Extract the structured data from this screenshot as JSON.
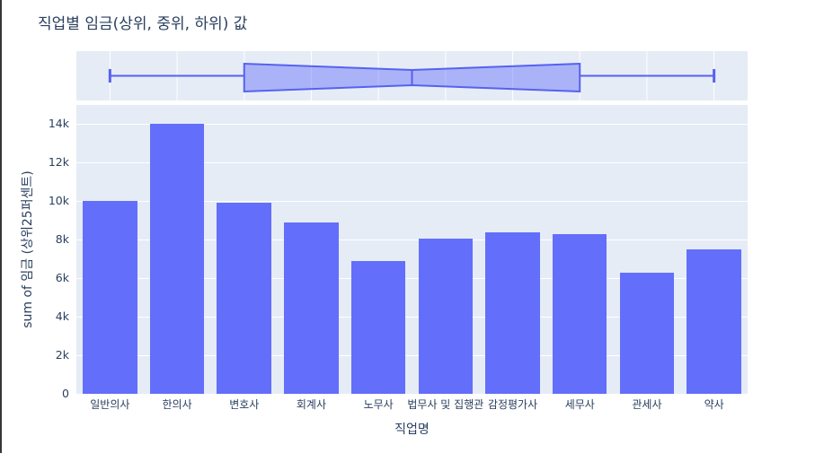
{
  "page": {
    "window": {
      "border_color": "#36373c",
      "background": "#ffffff"
    }
  },
  "chart_data": [
    {
      "type": "box",
      "orientation": "horizontal",
      "notched": true,
      "position": "top-subplot",
      "title": "",
      "axis_note": "shares categorical x-axis with bar chart below; no tick labels shown",
      "stats_in_category_index": {
        "min": 0,
        "q1": 2,
        "median": 4.5,
        "q3": 7,
        "max": 9
      },
      "line_color": "#5661F0",
      "fill_color": "rgba(99,110,250,0.45)",
      "plot_bg": "#E5ECF6",
      "grid": true
    },
    {
      "type": "bar",
      "position": "main-subplot",
      "title": "직업별 임금(상위, 중위, 하위) 값",
      "categories": [
        "일반의사",
        "한의사",
        "변호사",
        "회계사",
        "노무사",
        "법무사 및 집행관",
        "감정평가사",
        "세무사",
        "관세사",
        "약사"
      ],
      "values": [
        10000,
        14000,
        9900,
        8890,
        6880,
        8070,
        8400,
        8290,
        6310,
        7480
      ],
      "xlabel": "직업명",
      "ylabel": "sum of 임금 (상위25퍼센트)",
      "ylim": [
        0,
        15000
      ],
      "yticks": [
        {
          "value": 0,
          "label": "0"
        },
        {
          "value": 2000,
          "label": "2k"
        },
        {
          "value": 4000,
          "label": "4k"
        },
        {
          "value": 6000,
          "label": "6k"
        },
        {
          "value": 8000,
          "label": "8k"
        },
        {
          "value": 10000,
          "label": "10k"
        },
        {
          "value": 12000,
          "label": "12k"
        },
        {
          "value": 14000,
          "label": "14k"
        }
      ],
      "grid": true,
      "bar_color": "#636EFA",
      "plot_bg": "#E5ECF6",
      "text_color": "#2a3f5f"
    }
  ]
}
